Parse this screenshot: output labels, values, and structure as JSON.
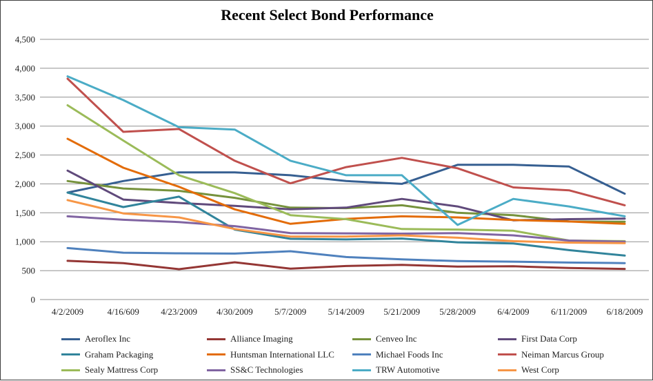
{
  "window": {
    "background": "#ffffff",
    "border_color": "#3f3f3f",
    "gridline_color": "#8f8f8f"
  },
  "chart_data": {
    "type": "line",
    "title": "Recent Select Bond Performance",
    "xlabel": "",
    "ylabel": "",
    "ylim": [
      0,
      4500
    ],
    "grid": "horizontal",
    "legend_position": "bottom",
    "x_labels": [
      "4/2/2009",
      "4/16/609",
      "4/23/2009",
      "4/30/2009",
      "5/7/2009",
      "5/14/2009",
      "5/21/2009",
      "5/28/2009",
      "6/4/2009",
      "6/11/2009",
      "6/18/2009"
    ],
    "y_tick_values": [
      0,
      500,
      1000,
      1500,
      2000,
      2500,
      3000,
      3500,
      4000,
      4500
    ],
    "y_tick_labels": [
      "0",
      "500",
      "1,000",
      "1,500",
      "2,000",
      "2,500",
      "3,000",
      "3,500",
      "4,000",
      "4,500"
    ],
    "series": [
      {
        "name": "Aeroflex Inc",
        "color": "#365F91",
        "values": [
          1850,
          2050,
          2200,
          2200,
          2150,
          2050,
          2000,
          2330,
          2330,
          2300,
          1830
        ]
      },
      {
        "name": "Alliance Imaging",
        "color": "#943634",
        "values": [
          670,
          630,
          525,
          645,
          535,
          580,
          600,
          570,
          575,
          545,
          530
        ]
      },
      {
        "name": "Cenveo Inc",
        "color": "#76923C",
        "values": [
          2050,
          1920,
          1880,
          1760,
          1590,
          1580,
          1630,
          1500,
          1460,
          1350,
          1345
        ]
      },
      {
        "name": "First Data Corp",
        "color": "#604A7B",
        "values": [
          2230,
          1730,
          1670,
          1620,
          1560,
          1590,
          1740,
          1610,
          1370,
          1390,
          1400
        ]
      },
      {
        "name": "Graham Packaging",
        "color": "#31849B",
        "values": [
          1850,
          1600,
          1780,
          1210,
          1050,
          1040,
          1055,
          990,
          970,
          855,
          760
        ]
      },
      {
        "name": "Huntsman International LLC",
        "color": "#E36C09",
        "values": [
          2780,
          2280,
          1950,
          1560,
          1310,
          1395,
          1440,
          1420,
          1375,
          1350,
          1310
        ]
      },
      {
        "name": "Michael Foods Inc",
        "color": "#4F81BD",
        "values": [
          890,
          810,
          800,
          795,
          835,
          735,
          695,
          665,
          655,
          640,
          630
        ]
      },
      {
        "name": "Neiman Marcus Group",
        "color": "#C0504D",
        "values": [
          3820,
          2900,
          2950,
          2400,
          2010,
          2290,
          2450,
          2270,
          1940,
          1890,
          1630
        ]
      },
      {
        "name": "Sealy Mattress Corp",
        "color": "#9BBB59",
        "values": [
          3360,
          2750,
          2150,
          1840,
          1460,
          1390,
          1220,
          1210,
          1190,
          1020,
          1010
        ]
      },
      {
        "name": "SS&C Technologies",
        "color": "#8064A2",
        "values": [
          1440,
          1380,
          1340,
          1270,
          1150,
          1145,
          1140,
          1150,
          1110,
          1020,
          1000
        ]
      },
      {
        "name": "TRW Automotive",
        "color": "#4BACC6",
        "values": [
          3860,
          3450,
          2980,
          2940,
          2400,
          2150,
          2150,
          1290,
          1740,
          1610,
          1440
        ]
      },
      {
        "name": "West Corp",
        "color": "#F79646",
        "values": [
          1720,
          1490,
          1420,
          1220,
          1090,
          1090,
          1110,
          1070,
          1010,
          985,
          975
        ]
      }
    ]
  }
}
